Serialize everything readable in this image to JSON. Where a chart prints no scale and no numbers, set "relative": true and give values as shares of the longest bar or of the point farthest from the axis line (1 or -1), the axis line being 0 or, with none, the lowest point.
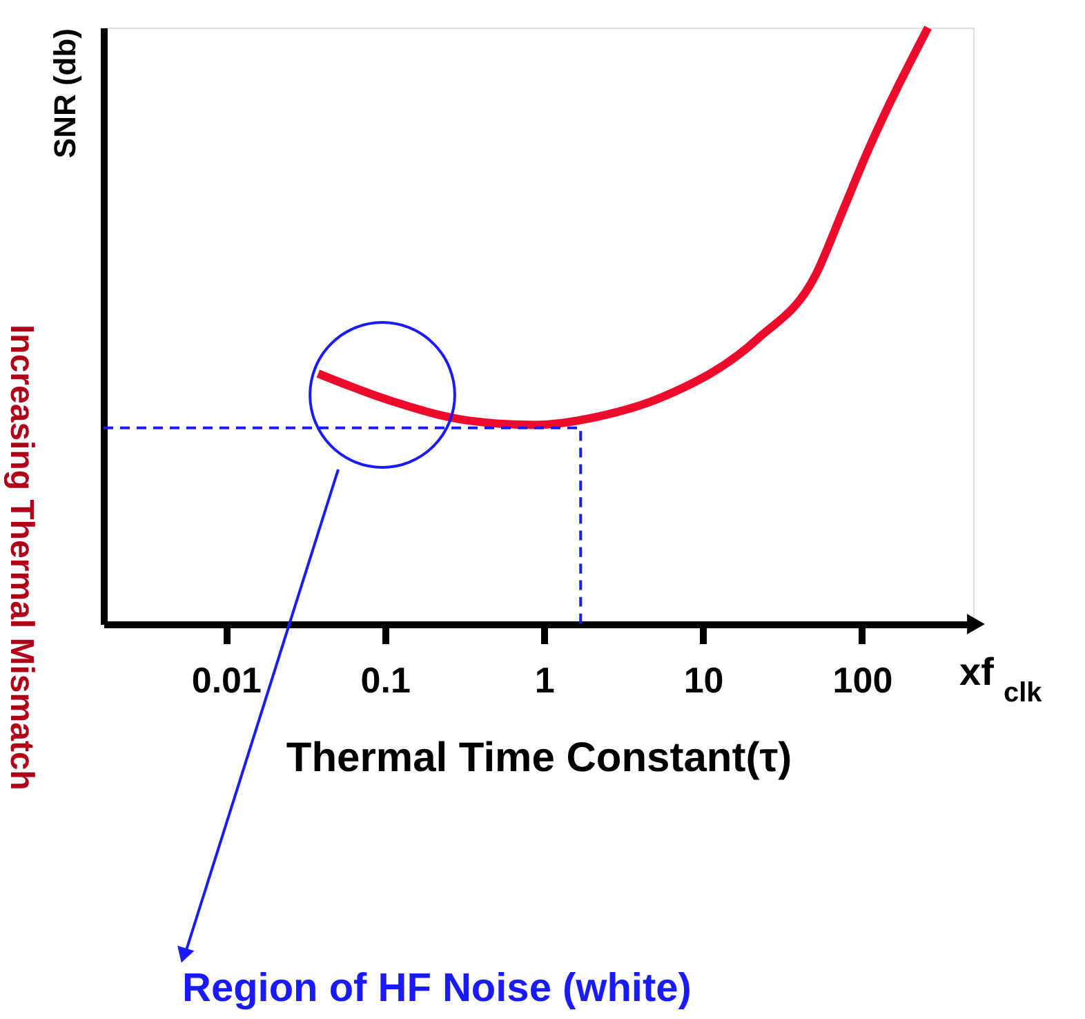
{
  "chart_data": {
    "type": "line",
    "relative": true,
    "log": "x",
    "tick_labels": "x",
    "grid": false,
    "xlabel": "Thermal Time Constant(τ)",
    "ylabel": "SNR (db)",
    "xlim": [
      0.0017,
      500
    ],
    "xticks": [
      0.01,
      0.1,
      1,
      10,
      100
    ],
    "series": [
      {
        "color": "#ee0a2a",
        "x": [
          0.038,
          0.11,
          0.34,
          0.87,
          2.2,
          5.6,
          22,
          51,
          76,
          107,
          260
        ],
        "values": [
          0.42,
          0.374,
          0.341,
          0.334,
          0.348,
          0.381,
          0.478,
          0.585,
          0.694,
          0.789,
          1.0
        ]
      },
      {
        "color": "#1a1aff",
        "line_style": "dashed",
        "x": [
          0.0017,
          1.7,
          1.7
        ],
        "values": [
          0.329,
          0.329,
          0
        ]
      }
    ],
    "annotations": [
      "Region of HF Noise (white)",
      "xf$_{clk}$",
      "Increasing Thermal Mismatch"
    ]
  }
}
